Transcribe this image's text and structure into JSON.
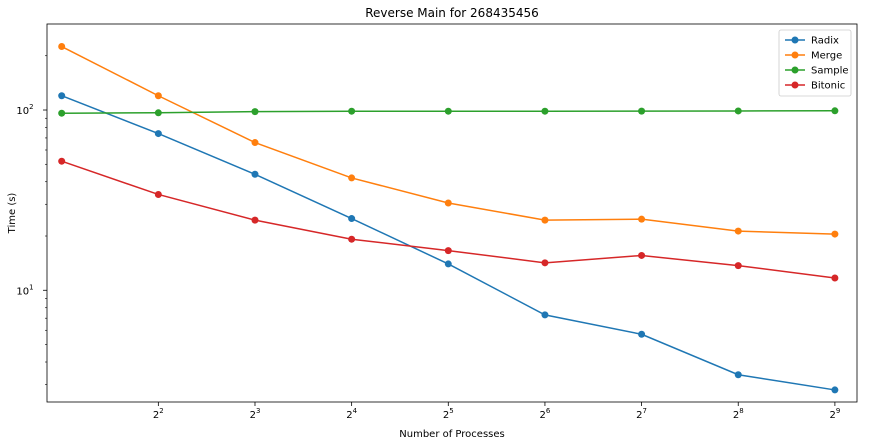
{
  "chart_data": {
    "type": "line",
    "title": "Reverse Main for 268435456",
    "xlabel": "Number of Processes",
    "ylabel": "Time (s)",
    "x_scale": "log2",
    "y_scale": "log10",
    "x": [
      2,
      4,
      8,
      16,
      32,
      64,
      128,
      256,
      512
    ],
    "x_ticks": [
      {
        "base": "2",
        "exp": "2",
        "value": 4
      },
      {
        "base": "2",
        "exp": "3",
        "value": 8
      },
      {
        "base": "2",
        "exp": "4",
        "value": 16
      },
      {
        "base": "2",
        "exp": "5",
        "value": 32
      },
      {
        "base": "2",
        "exp": "6",
        "value": 64
      },
      {
        "base": "2",
        "exp": "7",
        "value": 128
      },
      {
        "base": "2",
        "exp": "8",
        "value": 256
      },
      {
        "base": "2",
        "exp": "9",
        "value": 512
      }
    ],
    "y_ticks": [
      {
        "base": "10",
        "exp": "1",
        "value": 10
      },
      {
        "base": "10",
        "exp": "2",
        "value": 100
      }
    ],
    "series": [
      {
        "name": "Radix",
        "color": "#1f77b4",
        "values": [
          120,
          74,
          44,
          25,
          14,
          7.3,
          5.7,
          3.4,
          2.8
        ]
      },
      {
        "name": "Merge",
        "color": "#ff7f0e",
        "values": [
          225,
          120,
          66,
          42,
          30.5,
          24.5,
          24.8,
          21.3,
          20.5
        ]
      },
      {
        "name": "Sample",
        "color": "#2ca02c",
        "values": [
          96,
          96.5,
          98,
          98.5,
          98.5,
          98.5,
          98.6,
          98.8,
          99
        ]
      },
      {
        "name": "Bitonic",
        "color": "#d62728",
        "values": [
          52,
          34,
          24.5,
          19.2,
          16.6,
          14.2,
          15.6,
          13.7,
          11.7
        ]
      }
    ],
    "grid": false,
    "legend": "top-right"
  }
}
